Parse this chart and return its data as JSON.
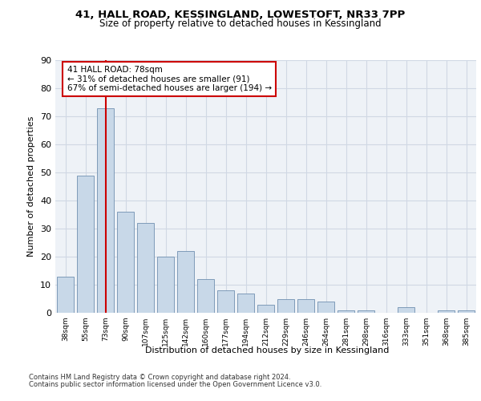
{
  "title1": "41, HALL ROAD, KESSINGLAND, LOWESTOFT, NR33 7PP",
  "title2": "Size of property relative to detached houses in Kessingland",
  "xlabel": "Distribution of detached houses by size in Kessingland",
  "ylabel": "Number of detached properties",
  "bar_labels": [
    "38sqm",
    "55sqm",
    "73sqm",
    "90sqm",
    "107sqm",
    "125sqm",
    "142sqm",
    "160sqm",
    "177sqm",
    "194sqm",
    "212sqm",
    "229sqm",
    "246sqm",
    "264sqm",
    "281sqm",
    "298sqm",
    "316sqm",
    "333sqm",
    "351sqm",
    "368sqm",
    "385sqm"
  ],
  "bar_values": [
    13,
    49,
    73,
    36,
    32,
    20,
    22,
    12,
    8,
    7,
    3,
    5,
    5,
    4,
    1,
    1,
    0,
    2,
    0,
    1,
    1
  ],
  "bar_color": "#c8d8e8",
  "bar_edge_color": "#7090b0",
  "vline_x": 2,
  "vline_color": "#cc0000",
  "annotation_text": "41 HALL ROAD: 78sqm\n← 31% of detached houses are smaller (91)\n67% of semi-detached houses are larger (194) →",
  "annotation_box_color": "#ffffff",
  "annotation_box_edge": "#cc0000",
  "ylim": [
    0,
    90
  ],
  "yticks": [
    0,
    10,
    20,
    30,
    40,
    50,
    60,
    70,
    80,
    90
  ],
  "bg_color": "#eef2f7",
  "grid_color": "#d0d8e4",
  "footer1": "Contains HM Land Registry data © Crown copyright and database right 2024.",
  "footer2": "Contains public sector information licensed under the Open Government Licence v3.0."
}
